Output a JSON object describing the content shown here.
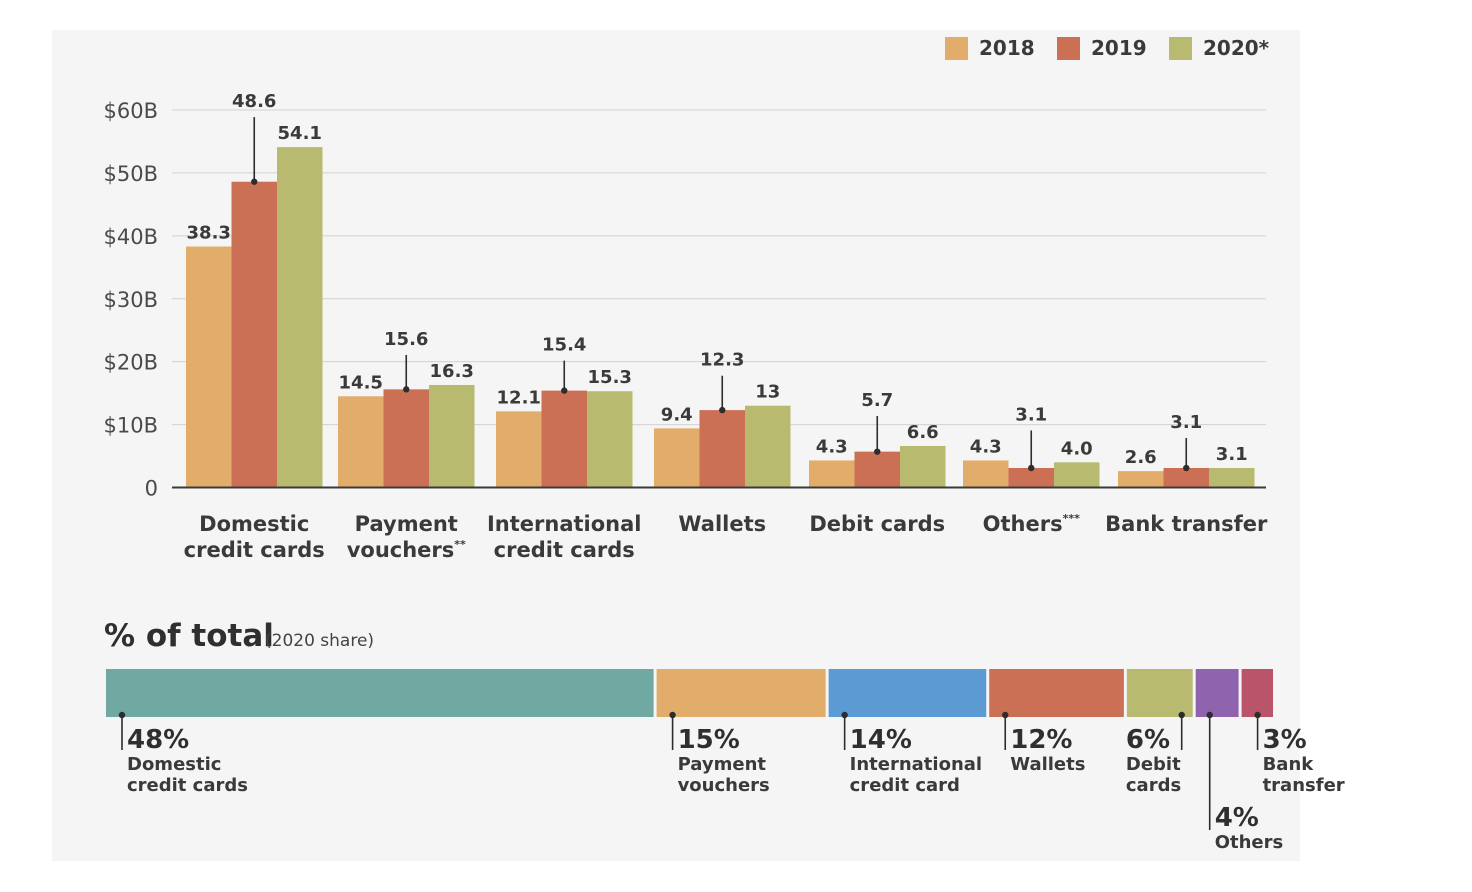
{
  "chart_data": [
    {
      "type": "bar",
      "title": "",
      "xlabel": "",
      "ylabel": "",
      "ylim": [
        0,
        60
      ],
      "y_ticks": [
        {
          "value": 0,
          "label": "0"
        },
        {
          "value": 10,
          "label": "$10B"
        },
        {
          "value": 20,
          "label": "$20B"
        },
        {
          "value": 30,
          "label": "$30B"
        },
        {
          "value": 40,
          "label": "$40B"
        },
        {
          "value": 50,
          "label": "$50B"
        },
        {
          "value": 60,
          "label": "$60B"
        }
      ],
      "grid": true,
      "legend_position": "top-right",
      "categories": [
        [
          "Domestic",
          "credit cards"
        ],
        [
          "Payment",
          "vouchers"
        ],
        [
          "International",
          "credit cards"
        ],
        [
          "Wallets"
        ],
        [
          "Debit cards"
        ],
        [
          "Others"
        ],
        [
          "Bank transfer"
        ]
      ],
      "category_marks": [
        "",
        "**",
        "",
        "",
        "",
        "***",
        ""
      ],
      "series": [
        {
          "name": "2018",
          "color": "#e2ad6b",
          "values": [
            38.3,
            14.5,
            12.1,
            9.4,
            4.3,
            4.3,
            2.6
          ],
          "labels": [
            "38.3",
            "14.5",
            "12.1",
            "9.4",
            "4.3",
            "4.3",
            "2.6"
          ]
        },
        {
          "name": "2019",
          "color": "#cb7055",
          "values": [
            48.6,
            15.6,
            15.4,
            12.3,
            5.7,
            3.1,
            3.1
          ],
          "labels": [
            "48.6",
            "15.6",
            "15.4",
            "12.3",
            "5.7",
            "3.1",
            "3.1"
          ]
        },
        {
          "name": "2020*",
          "color": "#b8ba70",
          "values": [
            54.1,
            16.3,
            15.3,
            13,
            6.6,
            4.0,
            3.1
          ],
          "labels": [
            "54.1",
            "16.3",
            "15.3",
            "13",
            "6.6",
            "4.0",
            "3.1"
          ]
        }
      ]
    },
    {
      "type": "stacked-bar",
      "title": "% of total",
      "subtitle": "(2020 share)",
      "segments": [
        {
          "value": 48,
          "label": "48%",
          "name": [
            "Domestic",
            "credit cards"
          ],
          "color": "#6fa9a2"
        },
        {
          "value": 15,
          "label": "15%",
          "name": [
            "Payment",
            "vouchers"
          ],
          "color": "#e2ad6b"
        },
        {
          "value": 14,
          "label": "14%",
          "name": [
            "International",
            "credit card"
          ],
          "color": "#5c9ad4"
        },
        {
          "value": 12,
          "label": "12%",
          "name": [
            "Wallets"
          ],
          "color": "#cb7055"
        },
        {
          "value": 6,
          "label": "6%",
          "name": [
            "Debit",
            "cards"
          ],
          "color": "#b8ba70"
        },
        {
          "value": 4,
          "label": "4%",
          "name": [
            "Others"
          ],
          "color": "#8f63ad"
        },
        {
          "value": 3,
          "label": "3%",
          "name": [
            "Bank",
            "transfer"
          ],
          "color": "#b9546a"
        }
      ]
    }
  ]
}
